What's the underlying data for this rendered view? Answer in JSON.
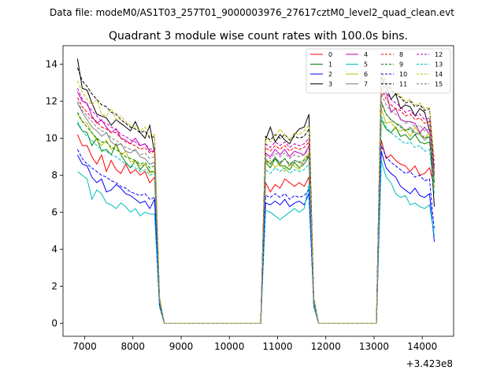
{
  "chart_data": {
    "type": "line",
    "suptitle": "Data file: modeM0/AS1T03_257T01_9000003976_27617cztM0_level2_quad_clean.evt",
    "title": "Quadrant 3 module wise count rates with 100.0s bins.",
    "xlabel": "",
    "ylabel": "",
    "offset_text": "+3.423e8",
    "xlim": [
      6550,
      14650
    ],
    "ylim": [
      -0.7,
      15
    ],
    "xticks": [
      "7000",
      "8000",
      "9000",
      "10000",
      "11000",
      "12000",
      "13000",
      "14000"
    ],
    "yticks": [
      "0",
      "2",
      "4",
      "6",
      "8",
      "10",
      "12",
      "14"
    ],
    "grid": false,
    "legend": {
      "location": "top-right",
      "columns": 4
    },
    "segment_times": [
      [
        6850,
        6950,
        7050,
        7150,
        7250,
        7350,
        7450,
        7550,
        7650,
        7750,
        7850,
        7950,
        8050,
        8150,
        8250,
        8350,
        8450,
        8550,
        8650
      ],
      [
        10650,
        10750,
        10850,
        10950,
        11050,
        11150,
        11250,
        11350,
        11450,
        11550,
        11650,
        11750,
        11850
      ],
      [
        13050,
        13150,
        13250,
        13350,
        13450,
        13550,
        13650,
        13750,
        13850,
        13950,
        14050,
        14150,
        14250
      ]
    ],
    "gap": {
      "x": [
        8750,
        10550,
        11950,
        12950
      ],
      "value": 0
    },
    "series": [
      {
        "name": "0",
        "color": "#ff0000",
        "dash": false,
        "segments": [
          [
            10.2,
            9.6,
            9.6,
            9.0,
            8.6,
            9.1,
            8.2,
            8.8,
            8.3,
            8.1,
            8.6,
            8.1,
            8.3,
            8.0,
            8.2,
            7.6,
            7.9,
            1.0,
            0.0
          ],
          [
            0.0,
            7.6,
            7.1,
            7.5,
            7.3,
            7.8,
            7.6,
            7.4,
            7.6,
            7.4,
            7.9,
            1.0,
            0.0
          ],
          [
            0.0,
            9.9,
            8.9,
            9.1,
            8.8,
            8.6,
            8.5,
            8.2,
            8.5,
            8.0,
            8.1,
            8.4,
            7.4
          ]
        ]
      },
      {
        "name": "1",
        "color": "#008000",
        "dash": false,
        "segments": [
          [
            10.8,
            10.4,
            10.3,
            9.6,
            10.0,
            9.3,
            9.4,
            9.1,
            9.7,
            9.1,
            8.7,
            8.4,
            8.8,
            8.3,
            8.6,
            8.2,
            8.2,
            1.1,
            0.0
          ],
          [
            0.0,
            8.7,
            8.4,
            8.9,
            8.5,
            8.5,
            8.3,
            8.7,
            8.4,
            8.6,
            9.0,
            1.1,
            0.0
          ],
          [
            0.0,
            11.0,
            10.5,
            10.3,
            10.6,
            10.1,
            10.2,
            9.9,
            10.2,
            9.8,
            9.7,
            9.8,
            8.0
          ]
        ]
      },
      {
        "name": "2",
        "color": "#0000ff",
        "dash": false,
        "segments": [
          [
            9.1,
            8.6,
            8.5,
            7.9,
            7.6,
            7.8,
            7.1,
            7.2,
            7.5,
            7.3,
            7.0,
            6.9,
            6.7,
            6.5,
            6.6,
            6.2,
            6.7,
            1.2,
            0.0
          ],
          [
            0.0,
            6.5,
            6.4,
            6.6,
            6.4,
            6.7,
            6.3,
            6.5,
            6.6,
            6.4,
            7.0,
            1.2,
            0.0
          ],
          [
            0.0,
            9.3,
            8.4,
            8.1,
            7.9,
            7.4,
            7.2,
            7.0,
            7.3,
            6.9,
            6.8,
            7.0,
            4.4
          ]
        ]
      },
      {
        "name": "3",
        "color": "#000000",
        "dash": false,
        "segments": [
          [
            14.3,
            12.7,
            12.6,
            11.9,
            11.3,
            11.2,
            11.1,
            10.7,
            11.0,
            10.8,
            10.6,
            10.4,
            10.9,
            10.3,
            10.0,
            10.7,
            9.2,
            1.3,
            0.0
          ],
          [
            0.0,
            9.9,
            10.6,
            9.8,
            10.2,
            9.9,
            9.7,
            10.2,
            10.5,
            10.6,
            11.3,
            1.3,
            0.0
          ],
          [
            0.0,
            13.3,
            12.8,
            12.1,
            12.4,
            11.6,
            11.8,
            11.7,
            11.2,
            11.6,
            11.4,
            10.4,
            6.3
          ]
        ]
      },
      {
        "name": "4",
        "color": "#c000c0",
        "dash": false,
        "segments": [
          [
            12.5,
            12.0,
            11.9,
            11.2,
            10.8,
            11.0,
            10.6,
            10.3,
            10.5,
            10.0,
            9.9,
            9.7,
            10.0,
            9.6,
            9.7,
            9.3,
            9.3,
            1.2,
            0.0
          ],
          [
            0.0,
            9.2,
            9.0,
            9.4,
            9.1,
            9.4,
            9.0,
            9.3,
            9.2,
            9.1,
            9.6,
            1.2,
            0.0
          ],
          [
            0.0,
            12.3,
            12.5,
            11.4,
            11.6,
            11.0,
            10.9,
            10.9,
            10.8,
            10.3,
            10.6,
            10.2,
            8.0
          ]
        ]
      },
      {
        "name": "5",
        "color": "#00bfbf",
        "dash": false,
        "segments": [
          [
            8.2,
            8.0,
            7.8,
            6.7,
            7.2,
            7.0,
            6.5,
            6.4,
            6.2,
            6.5,
            6.3,
            6.0,
            6.2,
            5.8,
            6.0,
            5.9,
            5.9,
            0.9,
            0.0
          ],
          [
            0.0,
            6.1,
            6.0,
            5.8,
            5.6,
            5.8,
            6.0,
            6.2,
            6.0,
            6.2,
            7.5,
            0.9,
            0.0
          ],
          [
            0.0,
            8.8,
            7.9,
            7.6,
            7.0,
            6.8,
            6.9,
            6.4,
            6.5,
            6.3,
            6.2,
            6.4,
            4.7
          ]
        ]
      },
      {
        "name": "6",
        "color": "#bfbf00",
        "dash": false,
        "segments": [
          [
            11.3,
            10.9,
            10.8,
            10.3,
            9.9,
            9.6,
            9.9,
            9.4,
            9.6,
            9.1,
            9.3,
            8.7,
            8.8,
            8.5,
            8.6,
            8.1,
            8.2,
            1.2,
            0.0
          ],
          [
            0.0,
            8.6,
            8.8,
            8.4,
            8.7,
            8.2,
            8.6,
            8.5,
            8.3,
            8.9,
            9.2,
            1.2,
            0.0
          ],
          [
            0.0,
            11.6,
            10.8,
            10.9,
            10.5,
            10.4,
            10.5,
            10.1,
            10.6,
            10.2,
            10.0,
            10.3,
            7.3
          ]
        ]
      },
      {
        "name": "7",
        "color": "#808080",
        "dash": false,
        "segments": [
          [
            11.9,
            11.4,
            11.0,
            10.6,
            10.4,
            10.1,
            10.3,
            9.8,
            9.6,
            9.7,
            9.3,
            9.2,
            9.4,
            9.0,
            8.9,
            8.6,
            8.7,
            1.2,
            0.0
          ],
          [
            0.0,
            8.9,
            8.6,
            9.0,
            8.6,
            8.9,
            8.5,
            8.8,
            8.7,
            8.6,
            9.1,
            1.2,
            0.0
          ],
          [
            0.0,
            12.0,
            11.3,
            11.0,
            10.8,
            10.7,
            10.4,
            10.6,
            10.3,
            10.2,
            9.9,
            10.1,
            7.6
          ]
        ]
      },
      {
        "name": "8",
        "color": "#ff0000",
        "dash": true,
        "segments": [
          [
            12.2,
            11.7,
            11.4,
            11.1,
            10.9,
            10.6,
            10.5,
            10.3,
            10.3,
            10.0,
            9.8,
            9.7,
            9.6,
            9.4,
            9.5,
            9.2,
            9.3,
            1.3,
            0.0
          ],
          [
            0.0,
            9.5,
            9.3,
            9.6,
            9.4,
            9.6,
            9.3,
            9.5,
            9.4,
            9.5,
            9.8,
            1.3,
            0.0
          ],
          [
            0.0,
            12.8,
            12.1,
            11.8,
            11.6,
            11.5,
            11.2,
            11.3,
            11.0,
            11.1,
            10.8,
            10.9,
            8.0
          ]
        ]
      },
      {
        "name": "9",
        "color": "#008000",
        "dash": true,
        "segments": [
          [
            11.4,
            10.9,
            10.6,
            10.3,
            10.0,
            9.8,
            9.8,
            9.5,
            9.4,
            9.2,
            9.0,
            8.9,
            8.8,
            8.6,
            8.7,
            8.4,
            8.5,
            1.2,
            0.0
          ],
          [
            0.0,
            8.8,
            8.6,
            8.9,
            8.7,
            8.9,
            8.6,
            8.8,
            8.7,
            8.8,
            9.1,
            1.2,
            0.0
          ],
          [
            0.0,
            11.9,
            11.3,
            11.0,
            10.8,
            10.6,
            10.4,
            10.5,
            10.2,
            10.3,
            10.0,
            10.1,
            7.6
          ]
        ]
      },
      {
        "name": "10",
        "color": "#0000ff",
        "dash": true,
        "segments": [
          [
            9.4,
            8.9,
            8.6,
            8.4,
            8.2,
            8.0,
            7.9,
            7.7,
            7.6,
            7.4,
            7.3,
            7.1,
            7.0,
            6.9,
            7.0,
            6.7,
            6.8,
            1.0,
            0.0
          ],
          [
            0.0,
            6.9,
            6.8,
            7.0,
            6.8,
            7.0,
            6.7,
            6.9,
            6.8,
            6.9,
            7.2,
            1.0,
            0.0
          ],
          [
            0.0,
            9.6,
            9.0,
            8.7,
            8.5,
            8.3,
            8.1,
            8.2,
            7.9,
            8.0,
            7.7,
            7.8,
            5.0
          ]
        ]
      },
      {
        "name": "11",
        "color": "#000000",
        "dash": true,
        "segments": [
          [
            13.8,
            13.1,
            12.8,
            12.4,
            12.1,
            11.8,
            11.7,
            11.4,
            11.3,
            11.0,
            10.8,
            10.6,
            10.5,
            10.3,
            10.4,
            10.0,
            10.1,
            1.4,
            0.0
          ],
          [
            0.0,
            10.1,
            9.9,
            10.2,
            10.0,
            10.2,
            9.9,
            10.1,
            10.0,
            10.1,
            10.5,
            1.4,
            0.0
          ],
          [
            0.0,
            13.6,
            13.0,
            12.6,
            12.4,
            12.2,
            11.9,
            12.0,
            11.7,
            11.8,
            11.5,
            11.6,
            8.4
          ]
        ]
      },
      {
        "name": "12",
        "color": "#c000c0",
        "dash": true,
        "segments": [
          [
            12.7,
            12.1,
            11.8,
            11.5,
            11.2,
            10.9,
            10.8,
            10.6,
            10.5,
            10.2,
            10.1,
            9.9,
            9.8,
            9.6,
            9.7,
            9.4,
            9.5,
            1.3,
            0.0
          ],
          [
            0.0,
            9.7,
            9.5,
            9.8,
            9.6,
            9.8,
            9.5,
            9.7,
            9.6,
            9.7,
            10.0,
            1.3,
            0.0
          ],
          [
            0.0,
            13.1,
            12.5,
            12.1,
            11.9,
            11.7,
            11.4,
            11.5,
            11.2,
            11.3,
            11.0,
            11.1,
            8.2
          ]
        ]
      },
      {
        "name": "13",
        "color": "#00bfbf",
        "dash": true,
        "segments": [
          [
            10.9,
            10.4,
            10.1,
            9.9,
            9.6,
            9.4,
            9.3,
            9.1,
            9.0,
            8.8,
            8.6,
            8.5,
            8.4,
            8.2,
            8.3,
            8.0,
            8.1,
            1.1,
            0.0
          ],
          [
            0.0,
            8.3,
            8.1,
            8.4,
            8.2,
            8.4,
            8.1,
            8.3,
            8.2,
            8.3,
            8.6,
            1.1,
            0.0
          ],
          [
            0.0,
            11.2,
            10.6,
            10.3,
            10.1,
            9.9,
            9.7,
            9.8,
            9.5,
            9.6,
            9.3,
            9.4,
            7.0
          ]
        ]
      },
      {
        "name": "14",
        "color": "#bfbf00",
        "dash": true,
        "segments": [
          [
            13.1,
            12.5,
            12.1,
            11.8,
            12.1,
            11.3,
            11.2,
            11.6,
            11.0,
            11.2,
            10.9,
            10.7,
            10.6,
            10.4,
            10.6,
            10.1,
            10.2,
            1.4,
            0.0
          ],
          [
            0.0,
            10.0,
            9.8,
            10.1,
            10.5,
            10.2,
            9.9,
            10.3,
            10.2,
            10.4,
            10.7,
            1.4,
            0.0
          ],
          [
            0.0,
            13.6,
            13.0,
            12.7,
            12.5,
            12.3,
            12.0,
            12.1,
            11.8,
            11.9,
            11.6,
            11.7,
            8.8
          ]
        ]
      },
      {
        "name": "15",
        "color": "#808080",
        "dash": true,
        "segments": [
          [
            12.0,
            11.5,
            11.2,
            10.9,
            10.6,
            10.4,
            10.3,
            10.0,
            9.9,
            9.7,
            9.5,
            9.4,
            9.3,
            9.1,
            9.2,
            8.9,
            9.0,
            1.2,
            0.0
          ],
          [
            0.0,
            9.1,
            8.9,
            9.2,
            9.0,
            9.2,
            8.9,
            9.1,
            9.0,
            9.1,
            9.4,
            1.2,
            0.0
          ],
          [
            0.0,
            12.4,
            11.8,
            11.5,
            11.3,
            11.1,
            10.8,
            10.9,
            10.6,
            10.7,
            10.4,
            10.5,
            7.8
          ]
        ]
      }
    ]
  }
}
